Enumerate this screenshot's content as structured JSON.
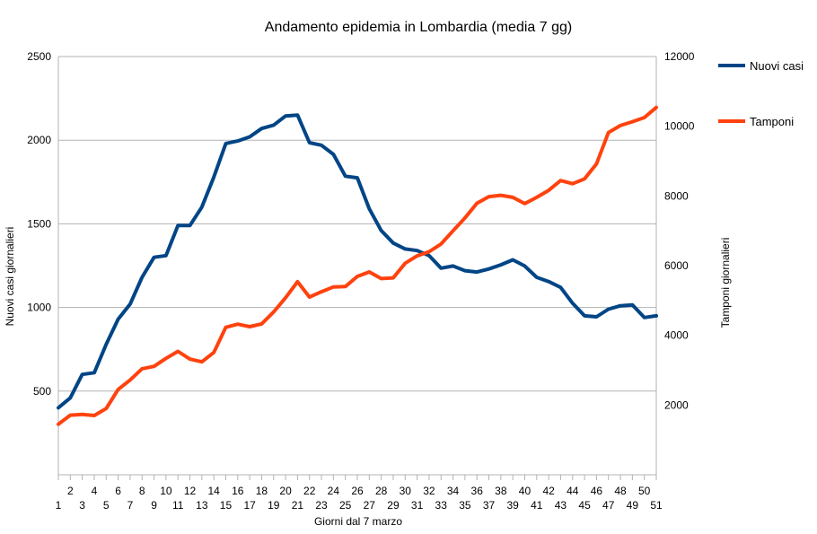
{
  "chart_data": {
    "type": "line",
    "title": "Andamento epidemia in Lombardia (media 7 gg)",
    "xlabel": "Giorni dal 7 marzo",
    "ylabel": "Nuovi casi giornalieri",
    "y2label": "Tamponi giornalieri",
    "x": [
      1,
      2,
      3,
      4,
      5,
      6,
      7,
      8,
      9,
      10,
      11,
      12,
      13,
      14,
      15,
      16,
      17,
      18,
      19,
      20,
      21,
      22,
      23,
      24,
      25,
      26,
      27,
      28,
      29,
      30,
      31,
      32,
      33,
      34,
      35,
      36,
      37,
      38,
      39,
      40,
      41,
      42,
      43,
      44,
      45,
      46,
      47,
      48,
      49,
      50,
      51
    ],
    "xlim": [
      1,
      51
    ],
    "ylim": [
      0,
      2500
    ],
    "y2lim": [
      0,
      12000
    ],
    "yticks": [
      500,
      1000,
      1500,
      2000,
      2500
    ],
    "y2ticks": [
      2000,
      4000,
      6000,
      8000,
      10000,
      12000
    ],
    "grid": true,
    "legend_position": "right",
    "series": [
      {
        "name": "Nuovi casi",
        "axis": "left",
        "color": "#004586",
        "values": [
          400,
          460,
          600,
          610,
          780,
          930,
          1020,
          1180,
          1300,
          1310,
          1490,
          1490,
          1600,
          1780,
          1980,
          1995,
          2020,
          2070,
          2090,
          2145,
          2150,
          1985,
          1970,
          1915,
          1785,
          1775,
          1590,
          1460,
          1385,
          1350,
          1340,
          1310,
          1235,
          1248,
          1220,
          1212,
          1230,
          1255,
          1285,
          1248,
          1180,
          1155,
          1120,
          1025,
          950,
          944,
          990,
          1010,
          1015,
          940,
          950
        ]
      },
      {
        "name": "Tamponi",
        "axis": "right",
        "color": "#ff420e",
        "values": [
          1450,
          1710,
          1730,
          1700,
          1900,
          2450,
          2720,
          3040,
          3110,
          3340,
          3540,
          3320,
          3240,
          3510,
          4230,
          4320,
          4250,
          4330,
          4670,
          5080,
          5540,
          5100,
          5250,
          5390,
          5400,
          5690,
          5820,
          5630,
          5650,
          6070,
          6280,
          6400,
          6620,
          7000,
          7370,
          7790,
          7980,
          8020,
          7960,
          7780,
          7960,
          8160,
          8440,
          8350,
          8490,
          8920,
          9820,
          10020,
          10130,
          10250,
          10540
        ]
      }
    ]
  }
}
